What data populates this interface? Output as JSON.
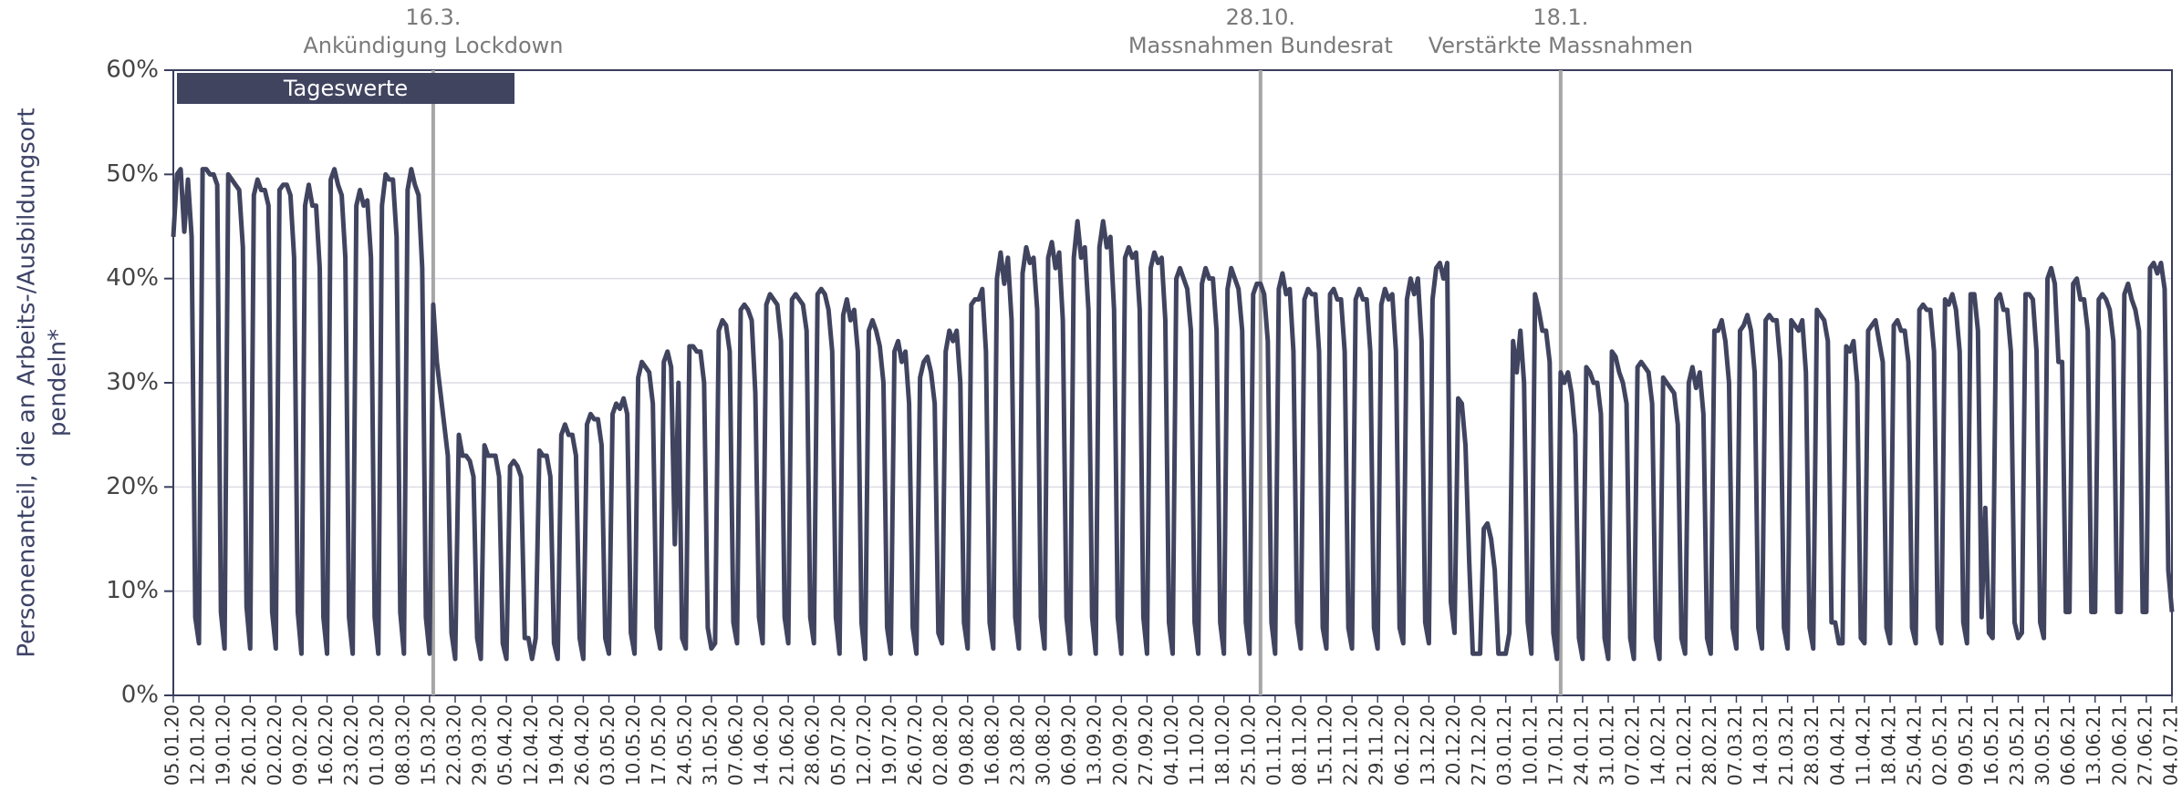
{
  "chart_data": {
    "type": "line",
    "ylabel": [
      "Personenanteil, die an Arbeits-/Ausbildungsort",
      "pendeln*"
    ],
    "annotations": [
      {
        "date": "16.3.",
        "text": "Ankündigung Lockdown",
        "category_index": 71
      },
      {
        "date": "28.10.",
        "text": "Massnahmen Bundesrat",
        "category_index": 297
      },
      {
        "date": "18.1.",
        "text": "Verstärkte Massnahmen",
        "category_index": 379
      }
    ],
    "ylim": [
      0,
      60
    ],
    "yticks": [
      {
        "value": 0,
        "label": "0%"
      },
      {
        "value": 10,
        "label": "10%"
      },
      {
        "value": 20,
        "label": "20%"
      },
      {
        "value": 30,
        "label": "30%"
      },
      {
        "value": 40,
        "label": "40%"
      },
      {
        "value": 50,
        "label": "50%"
      },
      {
        "value": 60,
        "label": "60%"
      }
    ],
    "grid": true,
    "categories": [
      "05.01.20",
      null,
      null,
      null,
      null,
      null,
      null,
      "12.01.20",
      null,
      null,
      null,
      null,
      null,
      null,
      "19.01.20",
      null,
      null,
      null,
      null,
      null,
      null,
      "26.01.20",
      null,
      null,
      null,
      null,
      null,
      null,
      "02.02.20",
      null,
      null,
      null,
      null,
      null,
      null,
      "09.02.20",
      null,
      null,
      null,
      null,
      null,
      null,
      "16.02.20",
      null,
      null,
      null,
      null,
      null,
      null,
      "23.02.20",
      null,
      null,
      null,
      null,
      null,
      null,
      "01.03.20",
      null,
      null,
      null,
      null,
      null,
      null,
      "08.03.20",
      null,
      null,
      null,
      null,
      null,
      null,
      "15.03.20",
      null,
      null,
      null,
      null,
      null,
      null,
      "22.03.20",
      null,
      null,
      null,
      null,
      null,
      null,
      "29.03.20",
      null,
      null,
      null,
      null,
      null,
      null,
      "05.04.20",
      null,
      null,
      null,
      null,
      null,
      null,
      "12.04.20",
      null,
      null,
      null,
      null,
      null,
      null,
      "19.04.20",
      null,
      null,
      null,
      null,
      null,
      null,
      "26.04.20",
      null,
      null,
      null,
      null,
      null,
      null,
      "03.05.20",
      null,
      null,
      null,
      null,
      null,
      null,
      "10.05.20",
      null,
      null,
      null,
      null,
      null,
      null,
      "17.05.20",
      null,
      null,
      null,
      null,
      null,
      null,
      "24.05.20",
      null,
      null,
      null,
      null,
      null,
      null,
      "31.05.20",
      null,
      null,
      null,
      null,
      null,
      null,
      "07.06.20",
      null,
      null,
      null,
      null,
      null,
      null,
      "14.06.20",
      null,
      null,
      null,
      null,
      null,
      null,
      "21.06.20",
      null,
      null,
      null,
      null,
      null,
      null,
      "28.06.20",
      null,
      null,
      null,
      null,
      null,
      null,
      "05.07.20",
      null,
      null,
      null,
      null,
      null,
      null,
      "12.07.20",
      null,
      null,
      null,
      null,
      null,
      null,
      "19.07.20",
      null,
      null,
      null,
      null,
      null,
      null,
      "26.07.20",
      null,
      null,
      null,
      null,
      null,
      null,
      "02.08.20",
      null,
      null,
      null,
      null,
      null,
      null,
      "09.08.20",
      null,
      null,
      null,
      null,
      null,
      null,
      "16.08.20",
      null,
      null,
      null,
      null,
      null,
      null,
      "23.08.20",
      null,
      null,
      null,
      null,
      null,
      null,
      "30.08.20",
      null,
      null,
      null,
      null,
      null,
      null,
      "06.09.20",
      null,
      null,
      null,
      null,
      null,
      null,
      "13.09.20",
      null,
      null,
      null,
      null,
      null,
      null,
      "20.09.20",
      null,
      null,
      null,
      null,
      null,
      null,
      "27.09.20",
      null,
      null,
      null,
      null,
      null,
      null,
      "04.10.20",
      null,
      null,
      null,
      null,
      null,
      null,
      "11.10.20",
      null,
      null,
      null,
      null,
      null,
      null,
      "18.10.20",
      null,
      null,
      null,
      null,
      null,
      null,
      "25.10.20",
      null,
      null,
      null,
      null,
      null,
      null,
      "01.11.20",
      null,
      null,
      null,
      null,
      null,
      null,
      "08.11.20",
      null,
      null,
      null,
      null,
      null,
      null,
      "15.11.20",
      null,
      null,
      null,
      null,
      null,
      null,
      "22.11.20",
      null,
      null,
      null,
      null,
      null,
      null,
      "29.11.20",
      null,
      null,
      null,
      null,
      null,
      null,
      "06.12.20",
      null,
      null,
      null,
      null,
      null,
      null,
      "13.12.20",
      null,
      null,
      null,
      null,
      null,
      null,
      "20.12.20",
      null,
      null,
      null,
      null,
      null,
      null,
      "27.12.20",
      null,
      null,
      null,
      null,
      null,
      null,
      "03.01.21",
      null,
      null,
      null,
      null,
      null,
      null,
      "10.01.21",
      null,
      null,
      null,
      null,
      null,
      null,
      "17.01.21",
      null,
      null,
      null,
      null,
      null,
      null,
      "24.01.21",
      null,
      null,
      null,
      null,
      null,
      null,
      "31.01.21",
      null,
      null,
      null,
      null,
      null,
      null,
      "07.02.21",
      null,
      null,
      null,
      null,
      null,
      null,
      "14.02.21",
      null,
      null,
      null,
      null,
      null,
      null,
      "21.02.21",
      null,
      null,
      null,
      null,
      null,
      null,
      "28.02.21",
      null,
      null,
      null,
      null,
      null,
      null,
      "07.03.21",
      null,
      null,
      null,
      null,
      null,
      null,
      "14.03.21",
      null,
      null,
      null,
      null,
      null,
      null,
      "21.03.21",
      null,
      null,
      null,
      null,
      null,
      null,
      "28.03.21",
      null,
      null,
      null,
      null,
      null,
      null,
      "04.04.21",
      null,
      null,
      null,
      null,
      null,
      null,
      "11.04.21",
      null,
      null,
      null,
      null,
      null,
      null,
      "18.04.21",
      null,
      null,
      null,
      null,
      null,
      null,
      "25.04.21",
      null,
      null,
      null,
      null,
      null,
      null,
      "02.05.21",
      null,
      null,
      null,
      null,
      null,
      null,
      "09.05.21",
      null,
      null,
      null,
      null,
      null,
      null,
      "16.05.21",
      null,
      null,
      null,
      null,
      null,
      null,
      "23.05.21",
      null,
      null,
      null,
      null,
      null,
      null,
      "30.05.21",
      null,
      null,
      null,
      null,
      null,
      null,
      "06.06.21",
      null,
      null,
      null,
      null,
      null,
      null,
      "13.06.21",
      null,
      null,
      null,
      null,
      null,
      null,
      "20.06.21",
      null,
      null,
      null,
      null,
      null,
      null,
      "27.06.21",
      null,
      null,
      null,
      null,
      null,
      null,
      "04.07.21"
    ],
    "series": [
      {
        "name": "Tageswerte",
        "color": "#41445f",
        "values": [
          44,
          50,
          50.5,
          44.5,
          49.5,
          44,
          7.5,
          5,
          50.5,
          50.5,
          50,
          50,
          49,
          8,
          4.5,
          50,
          49.5,
          49,
          48.5,
          43,
          8.5,
          4.5,
          48,
          49.5,
          48.5,
          48.5,
          47,
          8,
          4.5,
          48.5,
          49,
          49,
          48,
          42,
          8,
          4,
          47,
          49,
          47,
          47,
          41,
          7.5,
          4,
          49.5,
          50.5,
          49,
          48,
          42,
          7.5,
          4,
          47,
          48.5,
          47,
          47.5,
          42,
          7.5,
          4,
          47,
          50,
          49.5,
          49.5,
          44,
          8,
          4,
          48.5,
          50.5,
          49,
          48,
          41,
          7.5,
          4,
          37.5,
          32,
          29,
          26,
          23,
          6,
          3.5,
          25,
          23,
          23,
          22.5,
          21,
          5.5,
          3.5,
          24,
          23,
          23,
          23,
          21,
          5,
          3.5,
          22,
          22.5,
          22,
          21,
          5.5,
          5.5,
          3.5,
          5.5,
          23.5,
          23,
          23,
          21,
          5,
          3.5,
          25,
          26,
          25,
          25,
          23,
          5.5,
          3.5,
          26,
          27,
          26.5,
          26.5,
          24,
          5.5,
          4,
          27,
          28,
          27.5,
          28.5,
          27,
          6,
          4,
          30.5,
          32,
          31.5,
          31,
          28,
          6.5,
          4.5,
          32,
          33,
          31.5,
          14.5,
          30,
          5.5,
          4.5,
          33.5,
          33.5,
          33,
          33,
          30,
          6.5,
          4.5,
          5,
          35,
          36,
          35.5,
          33,
          7,
          5,
          37,
          37.5,
          37,
          36,
          29,
          7.5,
          5,
          37.5,
          38.5,
          38,
          37.5,
          34,
          7.5,
          5,
          38,
          38.5,
          38,
          37.5,
          35,
          7.5,
          5,
          38.5,
          39,
          38.5,
          37,
          33,
          7.5,
          4,
          36.5,
          38,
          36,
          37,
          33,
          7,
          3.5,
          35,
          36,
          35,
          33.5,
          30,
          6.5,
          4,
          33,
          34,
          32,
          33,
          28,
          6.5,
          4,
          30.5,
          32,
          32.5,
          31,
          28,
          6,
          5,
          33,
          35,
          34,
          35,
          30,
          7,
          4.5,
          37.5,
          38,
          38,
          39,
          33,
          7,
          4.5,
          40,
          42.5,
          39.5,
          42,
          36,
          7.5,
          4.5,
          40.5,
          43,
          41.5,
          42,
          37,
          7.5,
          4.5,
          42,
          43.5,
          41,
          42.5,
          36,
          7.5,
          4,
          42,
          45.5,
          42,
          43,
          37,
          7.5,
          4,
          43,
          45.5,
          43,
          44,
          37,
          7.5,
          4,
          42,
          43,
          42,
          42.5,
          37,
          7.5,
          4,
          41,
          42.5,
          41.5,
          42,
          36,
          7,
          4,
          40,
          41,
          40,
          39,
          35,
          7,
          4,
          39.5,
          41,
          40,
          40,
          35,
          7,
          4,
          39,
          41,
          40,
          39,
          35,
          7,
          4,
          38.5,
          39.5,
          39.5,
          38.5,
          34,
          7,
          4,
          39,
          40.5,
          38.5,
          39,
          33,
          7,
          4.5,
          38,
          39,
          38.5,
          38.5,
          33,
          6.5,
          4.5,
          38.5,
          39,
          38,
          38,
          33,
          6.5,
          4.5,
          38,
          39,
          38,
          38,
          33,
          6.5,
          4.5,
          37.5,
          39,
          38,
          38.5,
          33,
          6.5,
          5,
          38,
          40,
          38.5,
          40,
          34,
          7,
          5,
          38,
          41,
          41.5,
          40,
          41.5,
          9,
          6,
          28.5,
          28,
          24,
          13,
          4,
          4,
          4,
          16,
          16.5,
          15,
          12,
          4,
          4,
          4,
          6,
          34,
          31,
          35,
          30,
          7,
          4,
          38.5,
          37,
          35,
          35,
          32,
          6,
          3.5,
          31,
          30,
          31,
          29,
          25,
          5.5,
          3.5,
          31.5,
          31,
          30,
          30,
          27,
          5.5,
          3.5,
          33,
          32.5,
          31,
          30,
          28,
          5.5,
          3.5,
          31.5,
          32,
          31.5,
          31,
          28,
          5.5,
          3.5,
          30.5,
          30,
          29.5,
          29,
          26,
          5.5,
          4,
          30,
          31.5,
          29.5,
          31,
          27,
          5.5,
          4,
          35,
          35,
          36,
          34,
          30,
          6.5,
          4.5,
          35,
          35.5,
          36.5,
          35,
          31,
          6.5,
          4.5,
          36,
          36.5,
          36,
          36,
          32,
          6.5,
          4.5,
          36,
          35.5,
          35,
          36,
          31,
          6.5,
          4.5,
          37,
          36.5,
          36,
          34,
          7,
          7,
          5,
          5,
          33.5,
          33,
          34,
          30,
          5.5,
          5,
          35,
          35.5,
          36,
          34,
          32,
          6.5,
          5,
          35.5,
          36,
          35,
          35,
          32,
          6.5,
          5,
          37,
          37.5,
          37,
          37,
          33,
          6.5,
          5,
          38,
          37.5,
          38.5,
          37,
          33,
          7,
          5,
          38.5,
          38.5,
          35,
          7.5,
          18,
          6,
          5.5,
          38,
          38.5,
          37,
          37,
          33,
          7,
          5.5,
          6,
          38.5,
          38.5,
          38,
          33,
          7,
          5.5,
          40,
          41,
          39.5,
          32,
          32,
          8,
          8,
          39.5,
          40,
          38,
          38,
          35,
          8,
          8,
          38,
          38.5,
          38,
          37,
          34,
          8,
          8,
          38.5,
          39.5,
          38,
          37,
          35,
          8,
          8,
          41,
          41.5,
          40.5,
          41.5,
          39,
          12,
          8
        ]
      }
    ]
  }
}
